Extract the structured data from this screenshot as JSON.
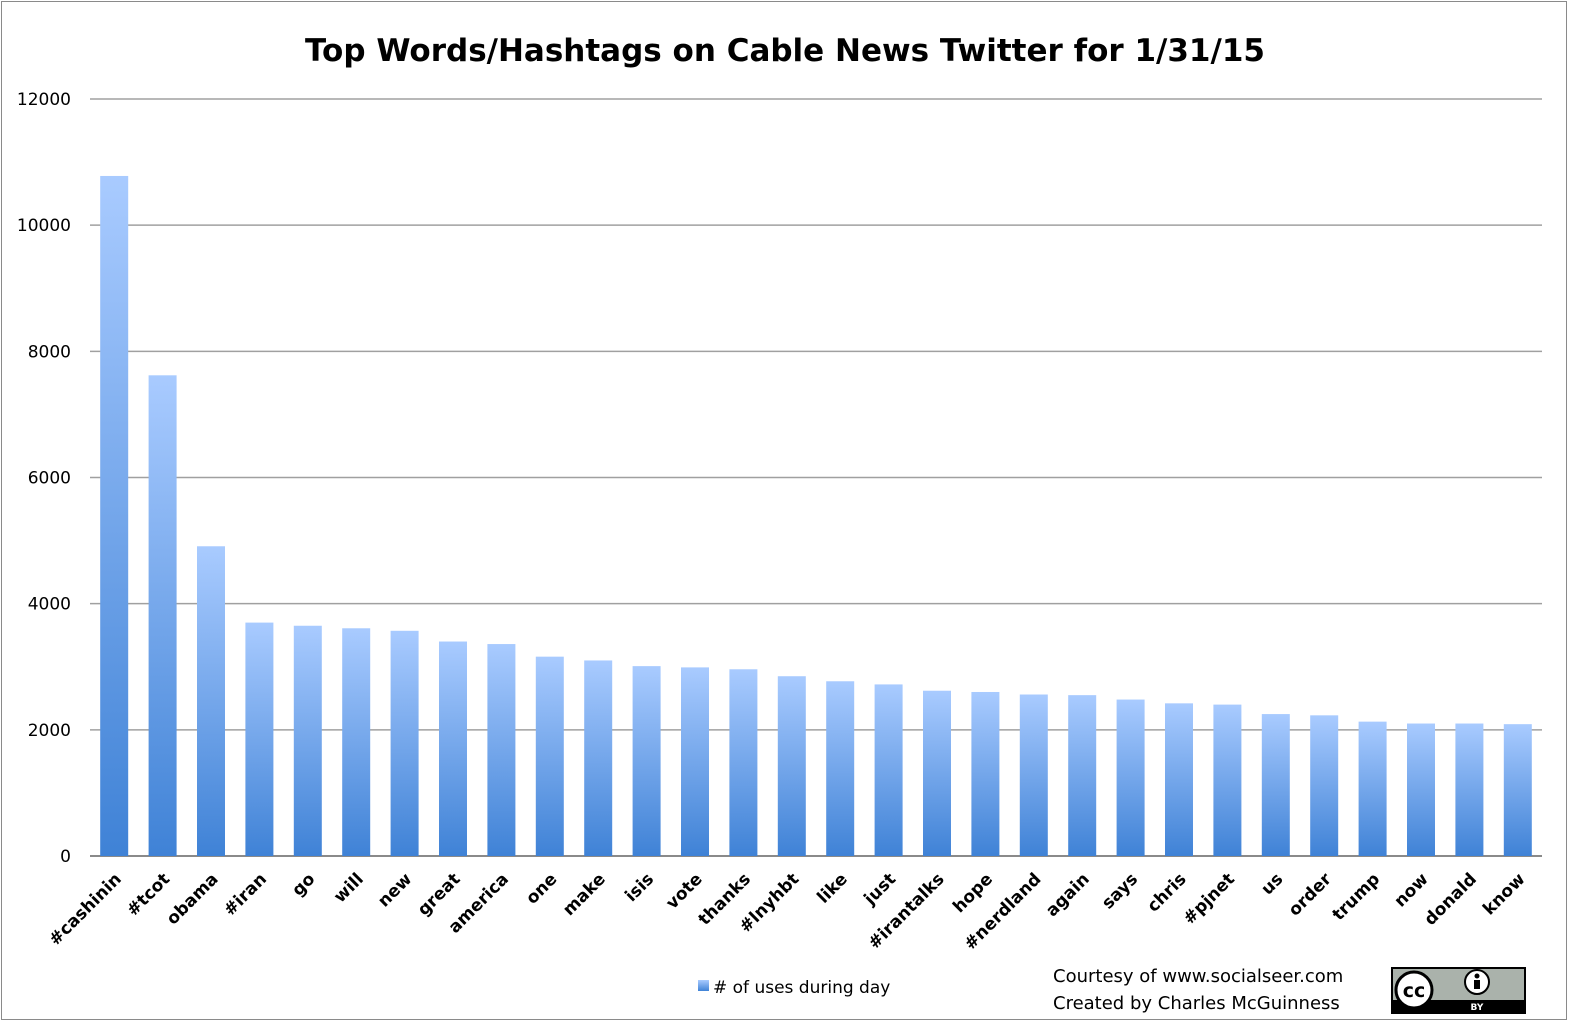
{
  "chart_data": {
    "type": "bar",
    "title": "Top Words/Hashtags on Cable News Twitter for 1/31/15",
    "xlabel": "",
    "ylabel": "",
    "ylim": [
      0,
      12000
    ],
    "yticks": [
      "0",
      "2000",
      "4000",
      "6000",
      "8000",
      "10000",
      "12000"
    ],
    "grid": "horizontal",
    "legend_position": "bottom",
    "categories": [
      "#cashinin",
      "#tcot",
      "obama",
      "#iran",
      "go",
      "will",
      "new",
      "great",
      "america",
      "one",
      "make",
      "isis",
      "vote",
      "thanks",
      "#lnyhbt",
      "like",
      "just",
      "#irantalks",
      "hope",
      "#nerdland",
      "again",
      "says",
      "chris",
      "#pjnet",
      "us",
      "order",
      "trump",
      "now",
      "donald",
      "know"
    ],
    "series": [
      {
        "name": "# of uses during day",
        "values": [
          10780,
          7620,
          4910,
          3700,
          3650,
          3610,
          3570,
          3400,
          3360,
          3160,
          3100,
          3010,
          2990,
          2960,
          2850,
          2770,
          2720,
          2620,
          2600,
          2560,
          2550,
          2480,
          2420,
          2400,
          2250,
          2230,
          2130,
          2100,
          2100,
          2090
        ]
      }
    ],
    "colors": {
      "bar_top": "#a9cbff",
      "bar_bottom": "#3f82d6",
      "grid": "#a0a0a0",
      "axis": "#8a8a8a"
    }
  },
  "credits": {
    "line1": "Courtesy of www.socialseer.com",
    "line2": "Created by Charles McGuinness"
  },
  "license_badge": {
    "icon": "creative-commons-by-icon",
    "cc_text": "cc",
    "by_text": "BY"
  }
}
